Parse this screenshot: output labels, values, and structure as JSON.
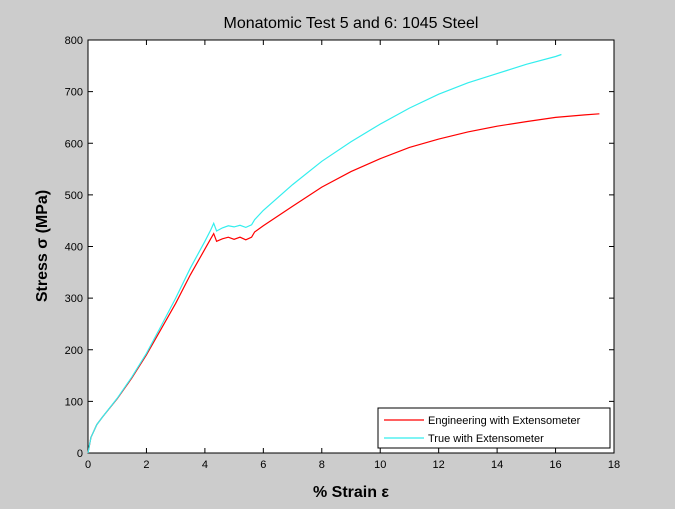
{
  "chart_data": {
    "type": "line",
    "title": "Monatomic Test 5 and 6: 1045 Steel",
    "xlabel": "% Strain ε",
    "ylabel": "Stress σ (MPa)",
    "xlim": [
      0,
      18
    ],
    "ylim": [
      0,
      800
    ],
    "xticks": [
      0,
      2,
      4,
      6,
      8,
      10,
      12,
      14,
      16,
      18
    ],
    "yticks": [
      0,
      100,
      200,
      300,
      400,
      500,
      600,
      700,
      800
    ],
    "grid": false,
    "legend_position": "bottom-right",
    "series": [
      {
        "name": "Engineering with Extensometer",
        "color": "#ff0000",
        "x": [
          0,
          0.1,
          0.3,
          0.5,
          1.0,
          1.5,
          2.0,
          2.5,
          3.0,
          3.5,
          4.0,
          4.2,
          4.3,
          4.4,
          4.6,
          4.8,
          5.0,
          5.2,
          5.4,
          5.6,
          5.7,
          6.0,
          7.0,
          8.0,
          9.0,
          10.0,
          11.0,
          12.0,
          13.0,
          14.0,
          15.0,
          16.0,
          17.0,
          17.5
        ],
        "y": [
          0,
          30,
          55,
          70,
          105,
          145,
          190,
          240,
          290,
          345,
          395,
          415,
          425,
          410,
          415,
          418,
          414,
          418,
          413,
          418,
          428,
          440,
          478,
          515,
          545,
          570,
          592,
          608,
          622,
          633,
          642,
          650,
          655,
          657
        ]
      },
      {
        "name": "True with Extensometer",
        "color": "#33eeee",
        "x": [
          0,
          0.1,
          0.3,
          0.5,
          1.0,
          1.5,
          2.0,
          2.5,
          3.0,
          3.5,
          4.0,
          4.2,
          4.3,
          4.4,
          4.6,
          4.8,
          5.0,
          5.2,
          5.4,
          5.6,
          5.7,
          6.0,
          7.0,
          8.0,
          9.0,
          10.0,
          11.0,
          12.0,
          13.0,
          14.0,
          15.0,
          16.0,
          16.2
        ],
        "y": [
          0,
          30,
          55,
          70,
          106,
          147,
          193,
          246,
          300,
          358,
          410,
          432,
          445,
          430,
          436,
          440,
          438,
          441,
          437,
          442,
          452,
          470,
          520,
          565,
          603,
          637,
          668,
          695,
          717,
          735,
          753,
          768,
          772
        ]
      }
    ]
  }
}
